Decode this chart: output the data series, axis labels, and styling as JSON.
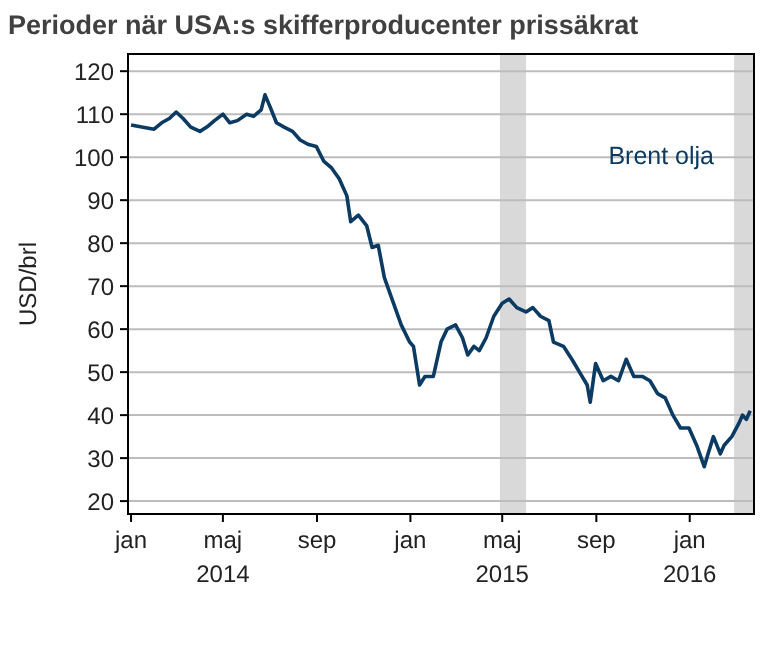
{
  "chart_data": {
    "type": "line",
    "title": "Perioder när USA:s skifferproducenter prissäkrat",
    "ylabel": "USD/brl",
    "xlim": [
      "2013-12-28",
      "2016-03-25"
    ],
    "ylim": [
      17,
      124
    ],
    "xticks": [
      {
        "value": "2014-01-01",
        "label": "jan"
      },
      {
        "value": "2014-05-01",
        "label": "maj\n2014"
      },
      {
        "value": "2014-09-01",
        "label": "sep"
      },
      {
        "value": "2015-01-01",
        "label": "jan"
      },
      {
        "value": "2015-05-01",
        "label": "maj\n2015"
      },
      {
        "value": "2015-09-01",
        "label": "sep"
      },
      {
        "value": "2016-01-01",
        "label": "jan\n2016"
      }
    ],
    "yticks": [
      20,
      30,
      40,
      50,
      60,
      70,
      80,
      90,
      100,
      110,
      120
    ],
    "grid": "y",
    "legend": "top right",
    "bands": [
      {
        "axis": "x",
        "from": "2015-04-28",
        "to": "2015-06-01",
        "color": "#d9d9d9"
      },
      {
        "axis": "x",
        "from": "2016-02-28",
        "to": "2016-03-25",
        "color": "#d9d9d9"
      }
    ],
    "series": [
      {
        "name": "Brent olja",
        "color": "#0b3a62",
        "x": [
          "2014-01-01",
          "2014-01-15",
          "2014-01-31",
          "2014-02-10",
          "2014-02-20",
          "2014-03-01",
          "2014-03-10",
          "2014-03-20",
          "2014-04-01",
          "2014-04-10",
          "2014-04-20",
          "2014-05-01",
          "2014-05-10",
          "2014-05-20",
          "2014-06-01",
          "2014-06-10",
          "2014-06-20",
          "2014-06-25",
          "2014-07-01",
          "2014-07-10",
          "2014-07-20",
          "2014-07-31",
          "2014-08-10",
          "2014-08-20",
          "2014-08-31",
          "2014-09-10",
          "2014-09-20",
          "2014-09-30",
          "2014-10-10",
          "2014-10-15",
          "2014-10-25",
          "2014-11-05",
          "2014-11-12",
          "2014-11-20",
          "2014-11-28",
          "2014-12-10",
          "2014-12-20",
          "2014-12-31",
          "2015-01-05",
          "2015-01-13",
          "2015-01-20",
          "2015-01-31",
          "2015-02-10",
          "2015-02-18",
          "2015-03-01",
          "2015-03-10",
          "2015-03-17",
          "2015-03-25",
          "2015-04-01",
          "2015-04-10",
          "2015-04-20",
          "2015-05-01",
          "2015-05-10",
          "2015-05-20",
          "2015-06-01",
          "2015-06-10",
          "2015-06-20",
          "2015-07-01",
          "2015-07-07",
          "2015-07-20",
          "2015-07-31",
          "2015-08-10",
          "2015-08-20",
          "2015-08-24",
          "2015-08-31",
          "2015-09-10",
          "2015-09-20",
          "2015-09-30",
          "2015-10-10",
          "2015-10-20",
          "2015-10-31",
          "2015-11-10",
          "2015-11-20",
          "2015-11-30",
          "2015-12-10",
          "2015-12-20",
          "2015-12-31",
          "2016-01-10",
          "2016-01-20",
          "2016-01-25",
          "2016-02-01",
          "2016-02-10",
          "2016-02-15",
          "2016-02-25",
          "2016-03-05",
          "2016-03-10",
          "2016-03-15",
          "2016-03-20"
        ],
        "values": [
          107.5,
          107,
          106.5,
          108,
          109,
          110.5,
          109,
          107,
          106,
          107,
          108.5,
          110,
          108,
          108.5,
          110,
          109.5,
          111,
          114.5,
          112,
          108,
          107,
          106,
          104,
          103,
          102.5,
          99,
          97.5,
          95,
          91,
          85,
          86.5,
          84,
          79,
          79.5,
          72,
          66,
          61,
          57,
          56,
          47,
          49,
          49,
          57,
          60,
          61,
          58,
          54,
          56,
          55,
          58,
          63,
          66,
          67,
          65,
          64,
          65,
          63,
          62,
          57,
          56,
          53,
          50,
          47,
          43,
          52,
          48,
          49,
          48,
          53,
          49,
          49,
          48,
          45,
          44,
          40,
          37,
          37,
          33,
          28,
          31,
          35,
          31,
          33,
          35,
          38,
          40,
          39,
          41
        ]
      }
    ]
  }
}
